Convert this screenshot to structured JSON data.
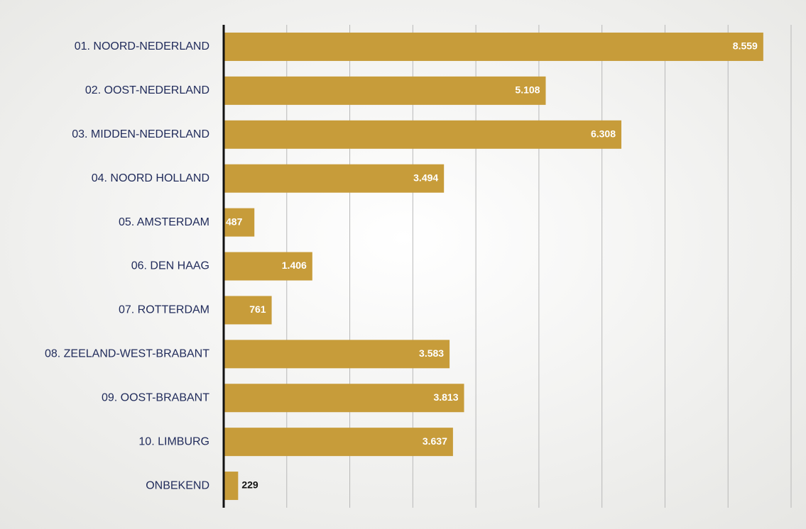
{
  "chart_data": {
    "type": "hbar",
    "categories": [
      "01. NOORD-NEDERLAND",
      "02. OOST-NEDERLAND",
      "03. MIDDEN-NEDERLAND",
      "04. NOORD HOLLAND",
      "05. AMSTERDAM",
      "06. DEN HAAG",
      "07. ROTTERDAM",
      "08. ZEELAND-WEST-BRABANT",
      "09. OOST-BRABANT",
      "10. LIMBURG",
      "ONBEKEND"
    ],
    "values": [
      8559,
      5108,
      6308,
      3494,
      487,
      1406,
      761,
      3583,
      3813,
      3637,
      229
    ],
    "value_labels": [
      "8.559",
      "5.108",
      "6.308",
      "3.494",
      "487",
      "1.406",
      "761",
      "3.583",
      "3.813",
      "3.637",
      "229"
    ],
    "color": "#c79c3a",
    "xlim": [
      0,
      9000
    ],
    "xticks": [
      0,
      1000,
      2000,
      3000,
      4000,
      5000,
      6000,
      7000,
      8000,
      9000
    ],
    "grid": true
  }
}
